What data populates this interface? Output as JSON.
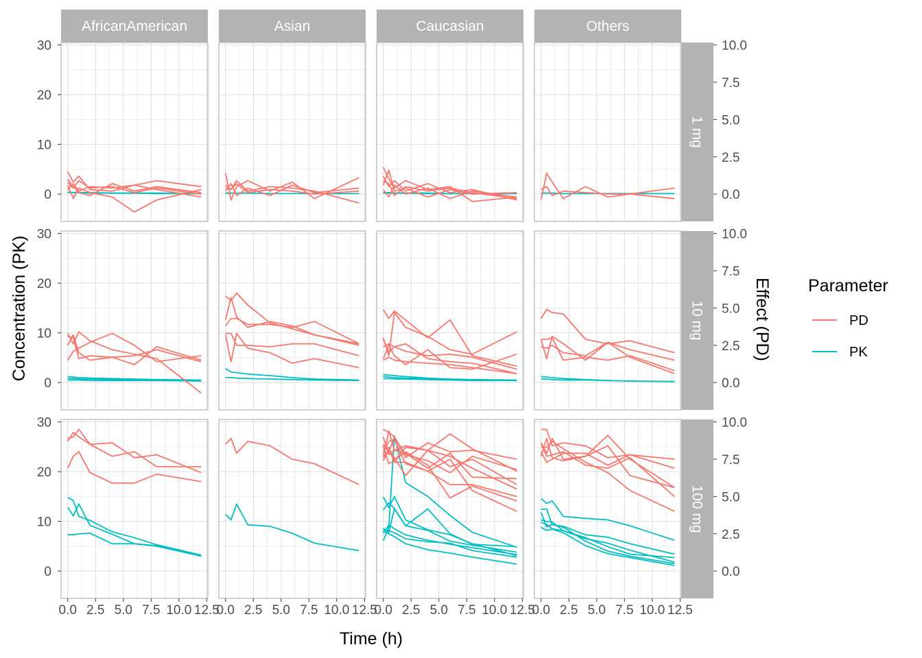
{
  "chart_data": {
    "type": "line",
    "xlabel": "Time (h)",
    "ylabel": "Concentration (PK)",
    "y2label": "Effect (PD)",
    "xlim": [
      -0.6,
      12.6
    ],
    "ylim": [
      -5.5,
      30.5
    ],
    "y2lim": [
      -1.8333,
      10.1667
    ],
    "x_ticks": [
      0,
      2.5,
      5,
      7.5,
      10,
      12.5
    ],
    "x_tick_labels": [
      "0.0",
      "2.5",
      "5.0",
      "7.5",
      "10.0",
      "12.5"
    ],
    "y_ticks": [
      0,
      10,
      20,
      30
    ],
    "y_tick_labels": [
      "0",
      "10",
      "20",
      "30"
    ],
    "y2_ticks": [
      0,
      2.5,
      5,
      7.5,
      10
    ],
    "y2_tick_labels": [
      "0.0",
      "2.5",
      "5.0",
      "7.5",
      "10.0"
    ],
    "grid": true,
    "legend": {
      "title": "Parameter",
      "position": "right",
      "entries": [
        {
          "name": "PD",
          "color": "#F8766D"
        },
        {
          "name": "PK",
          "color": "#00BFC4"
        }
      ]
    },
    "colors": {
      "PD": "#F8766D",
      "PK": "#00BFC4",
      "strip_bg": "#b3b3b3",
      "grid": "#dedede",
      "panel_border": "#b3b3b3"
    },
    "columns": [
      "AfricanAmerican",
      "Asian",
      "Caucasian",
      "Others"
    ],
    "rows": [
      "1 mg",
      "10 mg",
      "100 mg"
    ],
    "series_note": "PD values in Effect units (right axis); PK values in Concentration units (left axis)",
    "x": [
      0,
      0.5,
      1,
      2,
      4,
      6,
      8,
      12
    ],
    "panels": [
      {
        "column": "AfricanAmerican",
        "row": "1 mg",
        "PK": [
          [
            0.3,
            0.3,
            0.3,
            0.2,
            0.2,
            0.2,
            0.1,
            0.1
          ],
          [
            0.4,
            0.3,
            0.3,
            0.3,
            0.2,
            0.2,
            0.2,
            0.1
          ]
        ],
        "PD": [
          [
            1.5,
            0.8,
            1.2,
            0.3,
            0.2,
            0.6,
            0.9,
            0.5
          ],
          [
            0.6,
            -0.3,
            0.4,
            0.1,
            -0.2,
            -1.2,
            -0.4,
            0.3
          ],
          [
            1.0,
            0.5,
            0.1,
            -0.1,
            0.7,
            0.2,
            0.5,
            0.1
          ],
          [
            0.3,
            0.7,
            0.2,
            0.5,
            0.4,
            0.6,
            0.3,
            -0.2
          ],
          [
            0.8,
            0.4,
            0.9,
            0.4,
            0.5,
            0.1,
            0.4,
            0.0
          ]
        ]
      },
      {
        "column": "Asian",
        "row": "1 mg",
        "PK": [
          [
            0.2,
            0.2,
            0.2,
            0.2,
            0.1,
            0.1,
            0.1,
            0.1
          ]
        ],
        "PD": [
          [
            1.4,
            -0.4,
            0.5,
            0.9,
            0.2,
            0.8,
            -0.3,
            1.1
          ],
          [
            0.6,
            0.3,
            0.9,
            0.2,
            0.5,
            0.4,
            0.2,
            -0.6
          ],
          [
            0.2,
            0.7,
            -0.1,
            0.4,
            -0.1,
            0.6,
            0.1,
            0.4
          ],
          [
            0.4,
            0.3,
            0.7,
            0.1,
            0.3,
            0.2,
            0.0,
            0.2
          ]
        ]
      },
      {
        "column": "Caucasian",
        "row": "1 mg",
        "PK": [
          [
            0.3,
            0.3,
            0.2,
            0.2,
            0.2,
            0.1,
            0.1,
            0.1
          ],
          [
            0.2,
            0.2,
            0.2,
            0.2,
            0.1,
            0.1,
            0.1,
            0.1
          ]
        ],
        "PD": [
          [
            1.8,
            1.0,
            0.4,
            0.9,
            0.3,
            0.5,
            -0.5,
            -0.2
          ],
          [
            1.2,
            0.5,
            0.9,
            0.2,
            0.7,
            0.1,
            0.3,
            -0.4
          ],
          [
            0.6,
            1.6,
            0.2,
            0.4,
            -0.2,
            0.3,
            0.0,
            0.1
          ],
          [
            0.3,
            -0.2,
            0.6,
            0.0,
            0.4,
            -0.3,
            0.2,
            -0.2
          ],
          [
            0.9,
            0.7,
            -0.1,
            0.5,
            0.2,
            0.4,
            0.1,
            -0.3
          ]
        ]
      },
      {
        "column": "Others",
        "row": "1 mg",
        "PK": [
          [
            0.2,
            0.2,
            0.2,
            0.1,
            0.1,
            0.1,
            0.1,
            0.1
          ]
        ],
        "PD": [
          [
            -0.4,
            1.4,
            0.8,
            -0.3,
            0.5,
            -0.2,
            0.0,
            0.4
          ],
          [
            0.3,
            0.5,
            -0.1,
            0.2,
            0.1,
            0.0,
            0.0,
            -0.3
          ]
        ]
      },
      {
        "column": "AfricanAmerican",
        "row": "10 mg",
        "PK": [
          [
            1.2,
            1.1,
            1.0,
            0.9,
            0.8,
            0.7,
            0.6,
            0.5
          ],
          [
            0.8,
            0.8,
            0.7,
            0.7,
            0.6,
            0.6,
            0.5,
            0.4
          ],
          [
            0.5,
            0.5,
            0.5,
            0.4,
            0.4,
            0.4,
            0.4,
            0.3
          ]
        ],
        "PD": [
          [
            3.3,
            2.6,
            3.4,
            2.8,
            2.2,
            1.9,
            1.6,
            -0.7
          ],
          [
            1.5,
            2.1,
            2.3,
            2.7,
            3.3,
            2.5,
            1.4,
            1.8
          ],
          [
            3.1,
            3.0,
            1.6,
            1.8,
            1.7,
            1.2,
            2.4,
            1.5
          ],
          [
            2.5,
            3.2,
            2.0,
            1.5,
            1.7,
            1.8,
            2.2,
            1.4
          ]
        ]
      },
      {
        "column": "Asian",
        "row": "10 mg",
        "PK": [
          [
            2.8,
            2.1,
            2.0,
            1.7,
            1.4,
            1.0,
            0.7,
            0.5
          ],
          [
            1.0,
            1.0,
            0.9,
            0.8,
            0.7,
            0.6,
            0.5,
            0.4
          ]
        ],
        "PD": [
          [
            5.8,
            5.5,
            6.0,
            5.2,
            4.0,
            3.6,
            3.2,
            2.6
          ],
          [
            3.8,
            4.3,
            4.3,
            3.9,
            3.9,
            3.7,
            4.1,
            2.6
          ],
          [
            3.2,
            1.4,
            3.3,
            2.3,
            2.0,
            1.3,
            1.6,
            1.0
          ],
          [
            3.3,
            3.3,
            2.5,
            2.5,
            2.4,
            2.6,
            2.6,
            1.8
          ],
          [
            4.2,
            5.7,
            4.4,
            3.7,
            4.1,
            3.8,
            3.2,
            2.5
          ]
        ]
      },
      {
        "column": "Caucasian",
        "row": "10 mg",
        "PK": [
          [
            1.6,
            1.5,
            1.4,
            1.2,
            0.9,
            0.7,
            0.6,
            0.5
          ],
          [
            1.2,
            1.1,
            1.0,
            0.9,
            0.8,
            0.6,
            0.5,
            0.4
          ],
          [
            0.8,
            0.8,
            0.7,
            0.7,
            0.6,
            0.5,
            0.4,
            0.4
          ]
        ],
        "PD": [
          [
            4.9,
            4.3,
            4.8,
            4.2,
            3.0,
            4.2,
            1.8,
            1.1
          ],
          [
            2.9,
            2.0,
            2.4,
            2.6,
            1.6,
            1.4,
            1.3,
            0.6
          ],
          [
            1.6,
            2.5,
            1.8,
            1.2,
            2.2,
            1.0,
            0.9,
            1.9
          ],
          [
            3.0,
            1.8,
            4.7,
            3.7,
            3.1,
            2.2,
            1.9,
            3.4
          ],
          [
            2.4,
            2.6,
            2.4,
            2.1,
            1.8,
            1.9,
            1.7,
            0.9
          ],
          [
            1.5,
            1.7,
            1.5,
            1.4,
            1.3,
            1.2,
            1.0,
            0.6
          ]
        ]
      },
      {
        "column": "Others",
        "row": "10 mg",
        "PK": [
          [
            1.2,
            1.1,
            1.0,
            0.8,
            0.6,
            0.4,
            0.3,
            0.2
          ],
          [
            0.7,
            0.7,
            0.6,
            0.5,
            0.5,
            0.4,
            0.3,
            0.2
          ]
        ],
        "PD": [
          [
            4.3,
            4.9,
            4.7,
            4.6,
            2.9,
            2.6,
            2.8,
            2.0
          ],
          [
            2.9,
            1.6,
            3.1,
            2.6,
            1.5,
            2.7,
            2.2,
            1.5
          ],
          [
            2.9,
            2.9,
            3.0,
            1.5,
            1.7,
            1.5,
            1.8,
            0.8
          ],
          [
            2.4,
            2.3,
            2.5,
            2.0,
            1.8,
            2.7,
            1.7,
            0.6
          ]
        ]
      },
      {
        "column": "AfricanAmerican",
        "row": "100 mg",
        "PK": [
          [
            14.8,
            14.2,
            11.0,
            10.2,
            7.9,
            6.7,
            5.3,
            3.2
          ],
          [
            12.8,
            11.1,
            13.5,
            9.2,
            7.4,
            5.5,
            5.1,
            3.0
          ],
          [
            7.3,
            7.3,
            7.5,
            7.6,
            5.5,
            5.5,
            5.0,
            3.0
          ]
        ],
        "PD": [
          [
            8.7,
            9.3,
            9.0,
            8.5,
            8.6,
            7.6,
            7.8,
            6.6
          ],
          [
            8.9,
            9.0,
            9.5,
            8.5,
            7.7,
            8.0,
            7.0,
            7.0
          ],
          [
            6.9,
            7.7,
            8.0,
            6.6,
            5.9,
            5.9,
            6.5,
            6.0
          ]
        ]
      },
      {
        "column": "Asian",
        "row": "100 mg",
        "PK": [
          [
            11.4,
            10.3,
            13.5,
            9.3,
            9.0,
            7.6,
            5.6,
            4.1
          ]
        ],
        "PD": [
          [
            8.5,
            8.9,
            7.9,
            8.7,
            8.4,
            7.5,
            7.2,
            5.8
          ]
        ]
      },
      {
        "column": "Caucasian",
        "row": "100 mg",
        "PK": [
          [
            8.6,
            7.8,
            12.5,
            9.1,
            12.5,
            7.5,
            5.4,
            4.9
          ],
          [
            12.3,
            13.7,
            12.6,
            9.1,
            8.2,
            6.0,
            5.2,
            3.8
          ],
          [
            7.6,
            9.3,
            8.5,
            7.3,
            6.2,
            5.4,
            4.7,
            3.3
          ],
          [
            14.9,
            12.8,
            15.0,
            10.3,
            8.3,
            7.3,
            5.5,
            3.1
          ],
          [
            8.4,
            8.1,
            7.7,
            6.5,
            5.9,
            5.6,
            4.1,
            2.8
          ],
          [
            6.1,
            8.8,
            27.2,
            17.8,
            15.0,
            11.2,
            7.8,
            4.8
          ],
          [
            8.1,
            7.5,
            6.9,
            5.5,
            4.3,
            3.6,
            2.8,
            1.4
          ]
        ],
        "PD": [
          [
            9.5,
            9.3,
            9.0,
            7.6,
            8.6,
            8.0,
            8.1,
            7.5
          ],
          [
            8.1,
            8.3,
            7.4,
            8.0,
            7.1,
            4.9,
            5.7,
            4.7
          ],
          [
            7.7,
            9.4,
            8.1,
            8.4,
            8.1,
            7.0,
            7.5,
            5.8
          ],
          [
            9.0,
            7.8,
            8.1,
            7.9,
            6.9,
            7.9,
            6.3,
            6.2
          ],
          [
            7.9,
            8.7,
            8.8,
            7.2,
            6.7,
            7.5,
            5.4,
            4.0
          ],
          [
            8.4,
            7.2,
            7.4,
            8.3,
            8.1,
            9.2,
            8.2,
            6.7
          ],
          [
            7.4,
            8.1,
            7.6,
            6.4,
            8.1,
            7.7,
            6.9,
            5.5
          ],
          [
            8.5,
            8.0,
            9.0,
            7.8,
            7.4,
            6.6,
            7.7,
            6.8
          ],
          [
            7.6,
            8.2,
            7.3,
            7.3,
            6.7,
            5.8,
            5.8,
            5.0
          ]
        ]
      },
      {
        "column": "Others",
        "row": "100 mg",
        "PK": [
          [
            14.6,
            13.6,
            14.1,
            11.0,
            10.6,
            10.3,
            9.1,
            6.2
          ],
          [
            12.4,
            12.5,
            9.3,
            9.0,
            7.3,
            6.8,
            5.5,
            3.4
          ],
          [
            9.8,
            9.4,
            8.5,
            8.1,
            6.7,
            4.9,
            3.4,
            2.7
          ],
          [
            11.8,
            8.9,
            9.4,
            8.8,
            6.0,
            4.0,
            3.0,
            1.5
          ],
          [
            8.8,
            8.2,
            8.4,
            7.7,
            5.1,
            3.5,
            2.7,
            1.1
          ],
          [
            10.3,
            10.0,
            9.9,
            8.1,
            6.5,
            5.6,
            4.2,
            1.8
          ]
        ],
        "PD": [
          [
            9.5,
            9.5,
            8.4,
            8.6,
            8.4,
            7.6,
            7.8,
            7.5
          ],
          [
            8.6,
            7.9,
            8.9,
            7.5,
            7.7,
            8.4,
            6.4,
            5.6
          ],
          [
            8.3,
            8.3,
            8.7,
            8.2,
            7.3,
            6.6,
            5.4,
            4.0
          ],
          [
            8.0,
            7.3,
            7.5,
            7.9,
            7.9,
            7.1,
            7.8,
            6.9
          ],
          [
            7.7,
            8.9,
            7.6,
            7.4,
            7.7,
            9.1,
            7.5,
            5.6
          ],
          [
            8.6,
            7.7,
            7.8,
            8.0,
            7.1,
            6.9,
            7.6,
            5.0
          ]
        ]
      }
    ]
  }
}
